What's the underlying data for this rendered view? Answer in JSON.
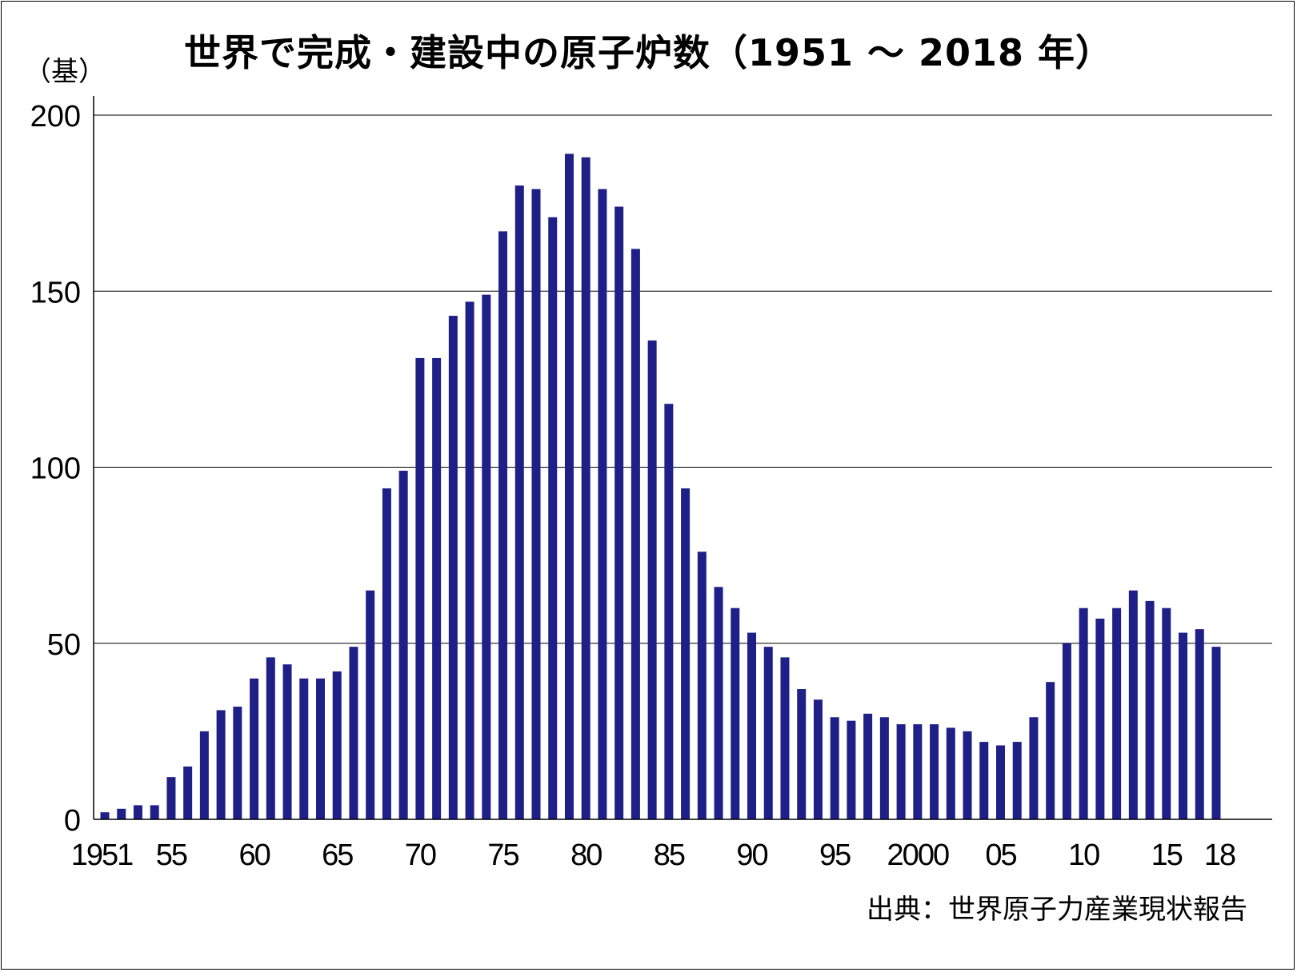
{
  "chart_data": {
    "type": "bar",
    "title": "世界で完成・建設中の原子炉数（1951 ～ 2018 年）",
    "ylabel": "（基）",
    "xlabel": "",
    "source": "出典：世界原子力産業現状報告",
    "ylim": [
      0,
      200
    ],
    "yticks": [
      0,
      50,
      100,
      150,
      200
    ],
    "grid": true,
    "bar_color": "#1f1f88",
    "x_start": 1951,
    "xtick_labels": [
      {
        "year": 1951,
        "label": "1951"
      },
      {
        "year": 1955,
        "label": "55"
      },
      {
        "year": 1960,
        "label": "60"
      },
      {
        "year": 1965,
        "label": "65"
      },
      {
        "year": 1970,
        "label": "70"
      },
      {
        "year": 1975,
        "label": "75"
      },
      {
        "year": 1980,
        "label": "80"
      },
      {
        "year": 1985,
        "label": "85"
      },
      {
        "year": 1990,
        "label": "90"
      },
      {
        "year": 1995,
        "label": "95"
      },
      {
        "year": 2000,
        "label": "2000"
      },
      {
        "year": 2005,
        "label": "05"
      },
      {
        "year": 2010,
        "label": "10"
      },
      {
        "year": 2015,
        "label": "15"
      },
      {
        "year": 2018,
        "label": "18"
      }
    ],
    "values": [
      2,
      3,
      4,
      4,
      12,
      15,
      25,
      31,
      32,
      40,
      46,
      44,
      40,
      40,
      42,
      49,
      65,
      94,
      99,
      131,
      131,
      143,
      147,
      149,
      167,
      180,
      179,
      171,
      189,
      188,
      179,
      174,
      162,
      136,
      118,
      94,
      76,
      66,
      60,
      53,
      49,
      46,
      37,
      34,
      29,
      28,
      30,
      29,
      27,
      27,
      27,
      26,
      25,
      22,
      21,
      22,
      29,
      39,
      50,
      60,
      57,
      60,
      65,
      62,
      60,
      53,
      54,
      49
    ]
  }
}
